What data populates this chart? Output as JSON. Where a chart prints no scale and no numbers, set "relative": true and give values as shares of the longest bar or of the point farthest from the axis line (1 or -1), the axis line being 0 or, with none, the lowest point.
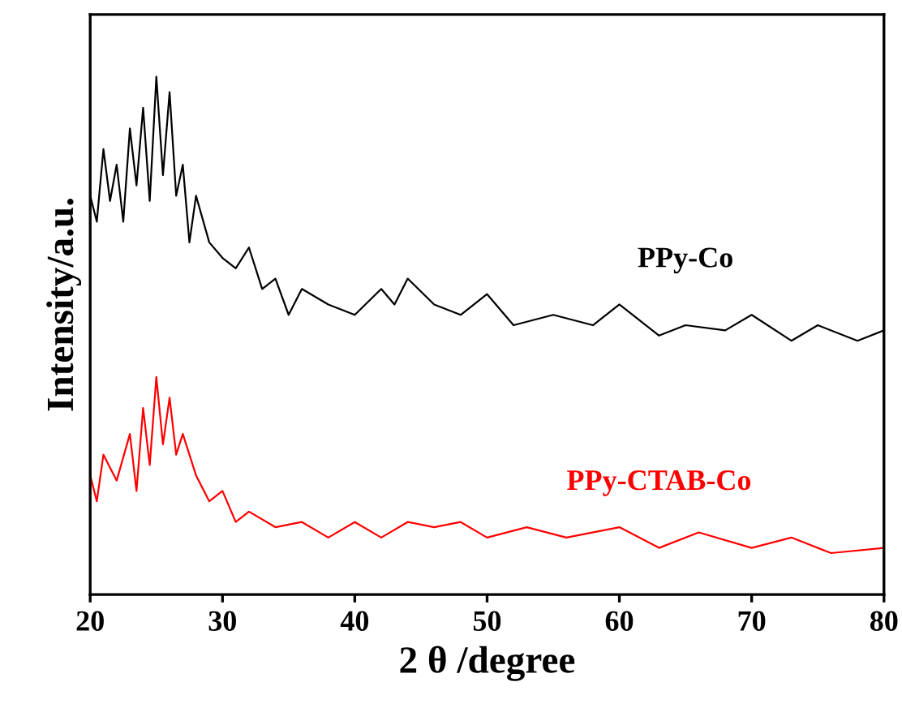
{
  "chart_data": {
    "type": "line",
    "relative": true,
    "xlabel": "2 θ /degree",
    "ylabel": "Intensity/a.u.",
    "xlim": [
      20,
      80
    ],
    "xticks": [
      20,
      30,
      40,
      50,
      60,
      70,
      80
    ],
    "grid": false,
    "legend": false,
    "marker": "none",
    "line_style": "solid",
    "series": [
      {
        "name": "PPy-Co",
        "color": "#000000",
        "x": [
          20,
          20.5,
          21,
          21.5,
          22,
          22.5,
          23,
          23.5,
          24,
          24.5,
          25,
          25.5,
          26,
          26.5,
          27,
          27.5,
          28,
          29,
          30,
          31,
          32,
          33,
          34,
          35,
          36,
          38,
          40,
          42,
          43,
          44,
          46,
          48,
          50,
          52,
          55,
          58,
          60,
          63,
          65,
          68,
          70,
          73,
          75,
          78,
          80
        ],
        "values": [
          0.77,
          0.72,
          0.86,
          0.76,
          0.83,
          0.72,
          0.9,
          0.79,
          0.94,
          0.76,
          1.0,
          0.81,
          0.97,
          0.77,
          0.83,
          0.68,
          0.77,
          0.68,
          0.65,
          0.63,
          0.67,
          0.59,
          0.61,
          0.54,
          0.59,
          0.56,
          0.54,
          0.59,
          0.56,
          0.61,
          0.56,
          0.54,
          0.58,
          0.52,
          0.54,
          0.52,
          0.56,
          0.5,
          0.52,
          0.51,
          0.54,
          0.49,
          0.52,
          0.49,
          0.51
        ]
      },
      {
        "name": "PPy-CTAB-Co",
        "color": "#ff0000",
        "x": [
          20,
          20.5,
          21,
          22,
          23,
          23.5,
          24,
          24.5,
          25,
          25.5,
          26,
          26.5,
          27,
          28,
          29,
          30,
          31,
          32,
          34,
          36,
          38,
          40,
          42,
          44,
          46,
          48,
          50,
          53,
          56,
          60,
          63,
          66,
          70,
          73,
          76,
          80
        ],
        "values": [
          0.23,
          0.18,
          0.27,
          0.22,
          0.31,
          0.2,
          0.36,
          0.25,
          0.42,
          0.29,
          0.38,
          0.27,
          0.31,
          0.23,
          0.18,
          0.2,
          0.14,
          0.16,
          0.13,
          0.14,
          0.11,
          0.14,
          0.11,
          0.14,
          0.13,
          0.14,
          0.11,
          0.13,
          0.11,
          0.13,
          0.09,
          0.12,
          0.09,
          0.11,
          0.08,
          0.09
        ]
      }
    ]
  }
}
